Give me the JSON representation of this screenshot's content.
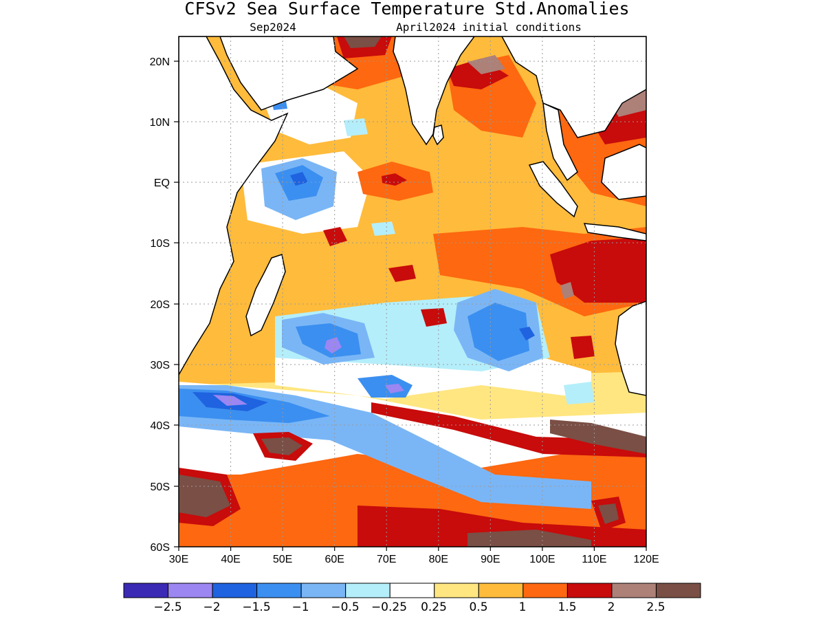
{
  "header": {
    "title": "CFSv2 Sea Surface Temperature Std.Anomalies",
    "valid_month": "Sep2024",
    "init": "April2024 initial conditions"
  },
  "map": {
    "projection": "lat-lon",
    "lon_range": [
      30,
      120
    ],
    "lat_range": [
      -60,
      24
    ],
    "lon_ticks": [
      "30E",
      "40E",
      "50E",
      "60E",
      "70E",
      "80E",
      "90E",
      "100E",
      "110E",
      "120E"
    ],
    "lat_ticks": [
      "20N",
      "10N",
      "EQ",
      "10S",
      "20S",
      "30S",
      "40S",
      "50S",
      "60S"
    ],
    "grid": "dotted",
    "land_color": "#ffffff",
    "coastline_color": "#000000"
  },
  "legend": {
    "colors": [
      "#3b2ab4",
      "#9b86f2",
      "#1f63e0",
      "#3b8ff0",
      "#7ab6f6",
      "#b4eefa",
      "#ffffff",
      "#ffe680",
      "#ffbb3b",
      "#fd6810",
      "#c80b0b",
      "#ad8078",
      "#7a4f45"
    ],
    "labels": [
      "−2.5",
      "−2",
      "−1.5",
      "−1",
      "−0.5",
      "−0.25",
      "0.25",
      "0.5",
      "1",
      "1.5",
      "2",
      "2.5"
    ]
  }
}
